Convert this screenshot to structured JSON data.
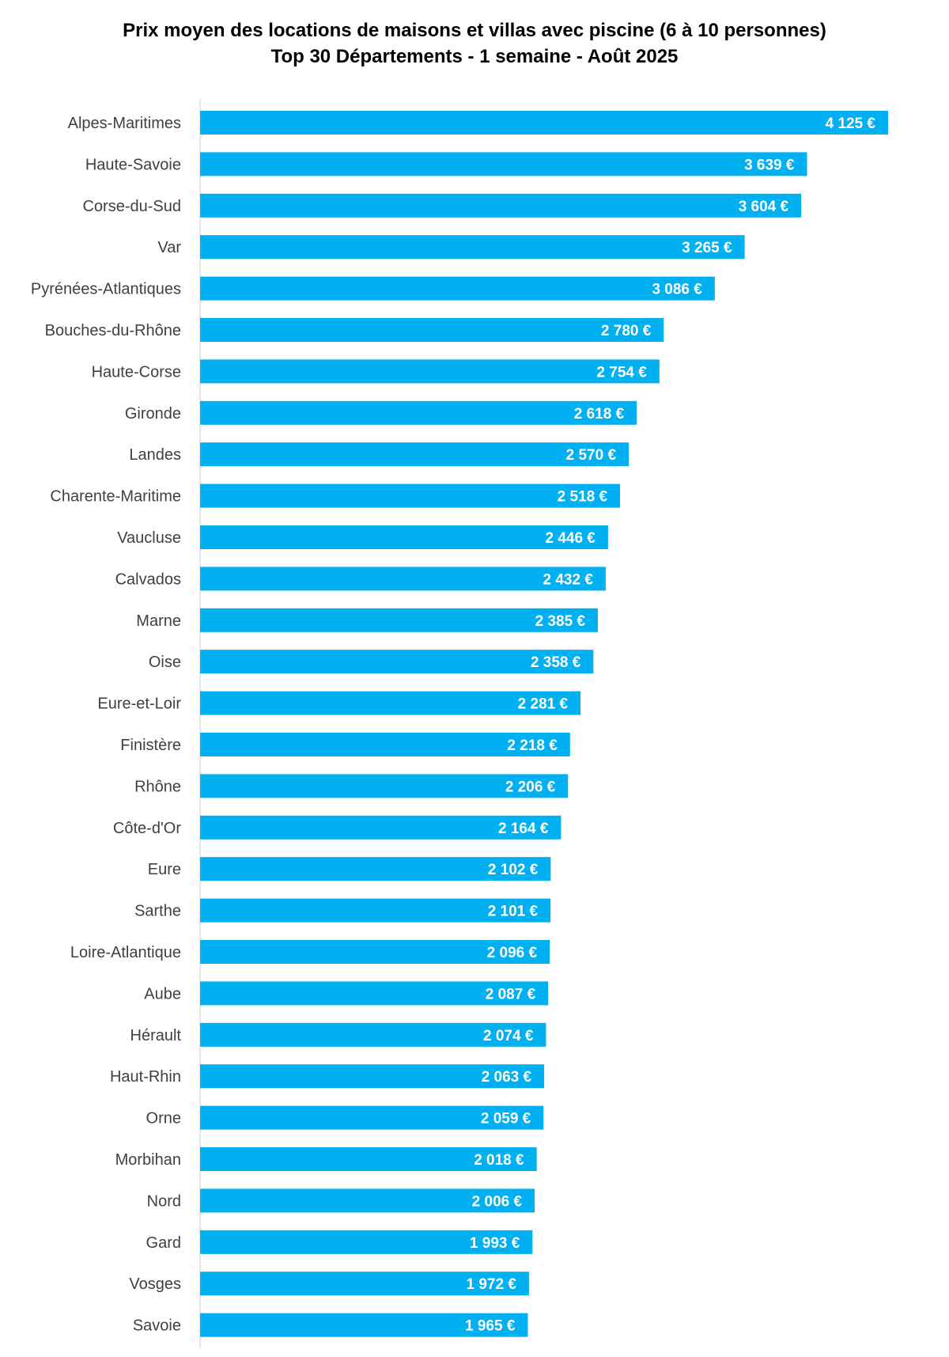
{
  "chart_data": {
    "type": "bar",
    "orientation": "horizontal",
    "title": "Prix moyen des locations de maisons et villas  avec piscine (6 à 10 personnes)",
    "subtitle": "Top 30 Départements - 1 semaine - Août 2025",
    "categories": [
      "Alpes-Maritimes",
      "Haute-Savoie",
      "Corse-du-Sud",
      "Var",
      "Pyrénées-Atlantiques",
      "Bouches-du-Rhône",
      "Haute-Corse",
      "Gironde",
      "Landes",
      "Charente-Maritime",
      "Vaucluse",
      "Calvados",
      "Marne",
      "Oise",
      "Eure-et-Loir",
      "Finistère",
      "Rhône",
      "Côte-d'Or",
      "Eure",
      "Sarthe",
      "Loire-Atlantique",
      "Aube",
      "Hérault",
      "Haut-Rhin",
      "Orne",
      "Morbihan",
      "Nord",
      "Gard",
      "Vosges",
      "Savoie"
    ],
    "values": [
      4125,
      3639,
      3604,
      3265,
      3086,
      2780,
      2754,
      2618,
      2570,
      2518,
      2446,
      2432,
      2385,
      2358,
      2281,
      2218,
      2206,
      2164,
      2102,
      2101,
      2096,
      2087,
      2074,
      2063,
      2059,
      2018,
      2006,
      1993,
      1972,
      1965
    ],
    "data_labels": [
      "4 125 €",
      "3 639 €",
      "3 604 €",
      "3 265 €",
      "3 086 €",
      "2 780 €",
      "2 754 €",
      "2 618 €",
      "2 570 €",
      "2 518 €",
      "2 446 €",
      "2 432 €",
      "2 385 €",
      "2 358 €",
      "2 281 €",
      "2 218 €",
      "2 206 €",
      "2 164 €",
      "2 102 €",
      "2 101 €",
      "2 096 €",
      "2 087 €",
      "2 074 €",
      "2 063 €",
      "2 059 €",
      "2 018 €",
      "2 006 €",
      "1 993 €",
      "1 972 €",
      "1 965 €"
    ],
    "xlim": [
      0,
      4125
    ],
    "bar_color": "#00B0F0",
    "grid": false,
    "legend": "none"
  }
}
